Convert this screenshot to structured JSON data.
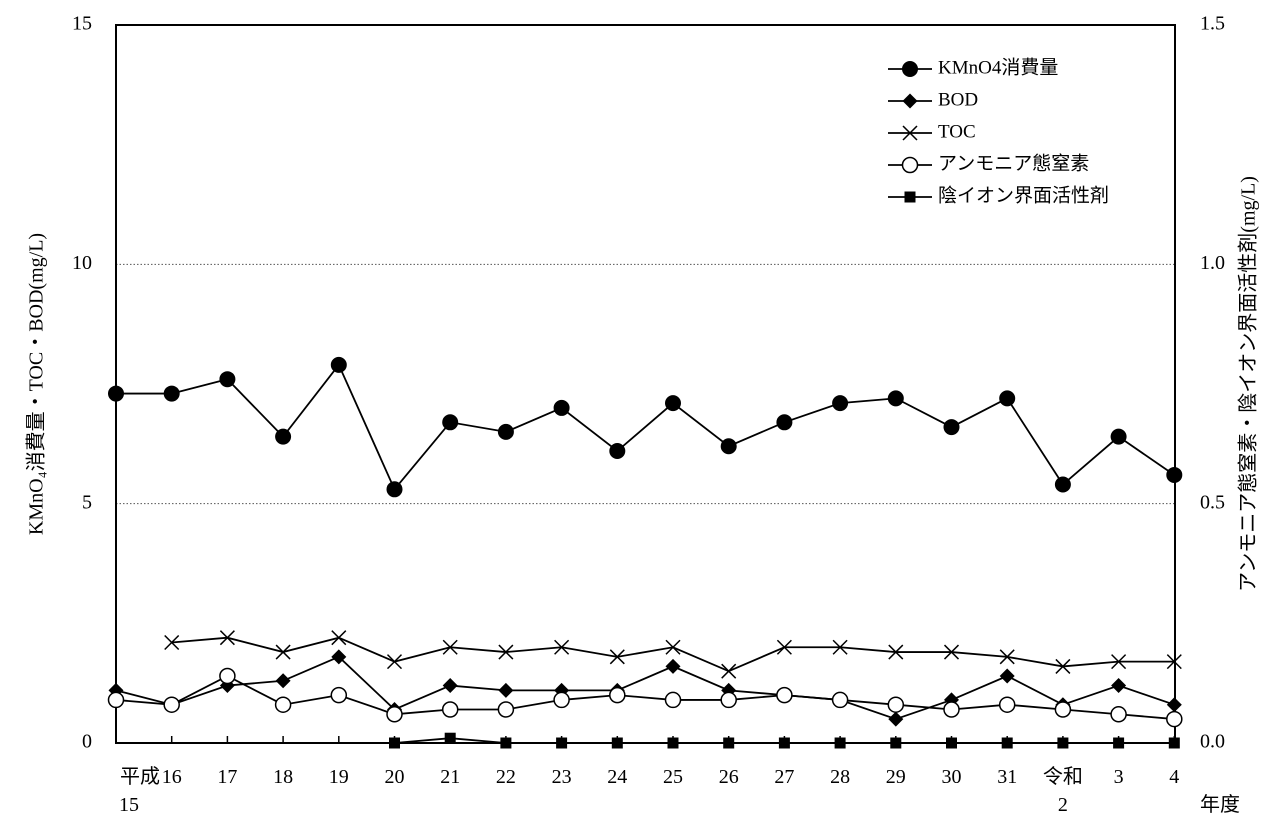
{
  "chart_data": {
    "type": "line",
    "title": "",
    "xlabel": "年度",
    "ylabel_left": "KMnO₄消費量・TOC・BOD(mg/L)",
    "ylabel_right": "アンモニア態窒素・陰イオン界面活性剤(mg/L)",
    "x_categories": [
      {
        "line1": "平成",
        "line2": "15"
      },
      {
        "line1": "16",
        "line2": ""
      },
      {
        "line1": "17",
        "line2": ""
      },
      {
        "line1": "18",
        "line2": ""
      },
      {
        "line1": "19",
        "line2": ""
      },
      {
        "line1": "20",
        "line2": ""
      },
      {
        "line1": "21",
        "line2": ""
      },
      {
        "line1": "22",
        "line2": ""
      },
      {
        "line1": "23",
        "line2": ""
      },
      {
        "line1": "24",
        "line2": ""
      },
      {
        "line1": "25",
        "line2": ""
      },
      {
        "line1": "26",
        "line2": ""
      },
      {
        "line1": "27",
        "line2": ""
      },
      {
        "line1": "28",
        "line2": ""
      },
      {
        "line1": "29",
        "line2": ""
      },
      {
        "line1": "30",
        "line2": ""
      },
      {
        "line1": "31",
        "line2": ""
      },
      {
        "line1": "令和",
        "line2": "2"
      },
      {
        "line1": "3",
        "line2": ""
      },
      {
        "line1": "4",
        "line2": ""
      }
    ],
    "y_left": {
      "min": 0,
      "max": 15,
      "ticks": [
        "0",
        "5",
        "10",
        "15"
      ]
    },
    "y_right": {
      "min": 0,
      "max": 1.5,
      "ticks": [
        "0.0",
        "0.5",
        "1.0",
        "1.5"
      ]
    },
    "grid": "horizontal-dotted",
    "legend_position": "top-right",
    "series": [
      {
        "name": "KMnO4消費量",
        "axis": "left",
        "marker": "filled-circle",
        "values": [
          7.3,
          7.3,
          7.6,
          6.4,
          7.9,
          5.3,
          6.7,
          6.5,
          7.0,
          6.1,
          7.1,
          6.2,
          6.7,
          7.1,
          7.2,
          6.6,
          7.2,
          5.4,
          6.4,
          5.6
        ]
      },
      {
        "name": "BOD",
        "axis": "left",
        "marker": "filled-diamond",
        "values": [
          1.1,
          0.8,
          1.2,
          1.3,
          1.8,
          0.7,
          1.2,
          1.1,
          1.1,
          1.1,
          1.6,
          1.1,
          1.0,
          0.9,
          0.5,
          0.9,
          1.4,
          0.8,
          1.2,
          0.8
        ]
      },
      {
        "name": "TOC",
        "axis": "left",
        "marker": "x",
        "values": [
          null,
          2.1,
          2.2,
          1.9,
          2.2,
          1.7,
          2.0,
          1.9,
          2.0,
          1.8,
          2.0,
          1.5,
          2.0,
          2.0,
          1.9,
          1.9,
          1.8,
          1.6,
          1.7,
          1.7
        ]
      },
      {
        "name": "アンモニア態窒素",
        "axis": "right",
        "marker": "open-circle",
        "values": [
          0.09,
          0.08,
          0.14,
          0.08,
          0.1,
          0.06,
          0.07,
          0.07,
          0.09,
          0.1,
          0.09,
          0.09,
          0.1,
          0.09,
          0.08,
          0.07,
          0.08,
          0.07,
          0.06,
          0.05
        ]
      },
      {
        "name": "陰イオン界面活性剤",
        "axis": "right",
        "marker": "filled-square",
        "values": [
          null,
          null,
          null,
          null,
          null,
          0.0,
          0.01,
          0.0,
          0.0,
          0.0,
          0.0,
          0.0,
          0.0,
          0.0,
          0.0,
          0.0,
          0.0,
          0.0,
          0.0,
          0.0
        ]
      }
    ]
  }
}
